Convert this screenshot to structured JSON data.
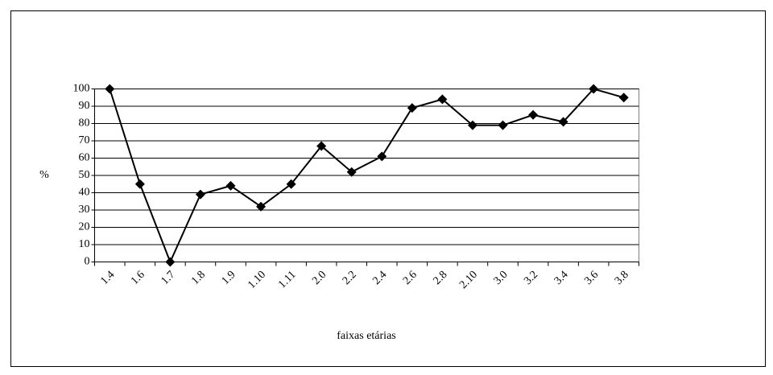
{
  "chart_data": {
    "type": "line",
    "categories": [
      "1.4",
      "1.6",
      "1.7",
      "1.8",
      "1.9",
      "1.10",
      "1.11",
      "2.0",
      "2.2",
      "2.4",
      "2.6",
      "2.8",
      "2.10",
      "3.0",
      "3.2",
      "3.4",
      "3.6",
      "3.8"
    ],
    "series": [
      {
        "color": "#000000",
        "values": [
          100,
          45,
          0,
          39,
          44,
          32,
          45,
          67,
          52,
          61,
          89,
          94,
          79,
          79,
          85,
          81,
          100,
          95
        ]
      }
    ],
    "ylabel": "%",
    "xlabel": "faixas etárias",
    "ylim": [
      0,
      100
    ],
    "yticks": [
      0,
      10,
      20,
      30,
      40,
      50,
      60,
      70,
      80,
      90,
      100
    ],
    "grid": true
  }
}
